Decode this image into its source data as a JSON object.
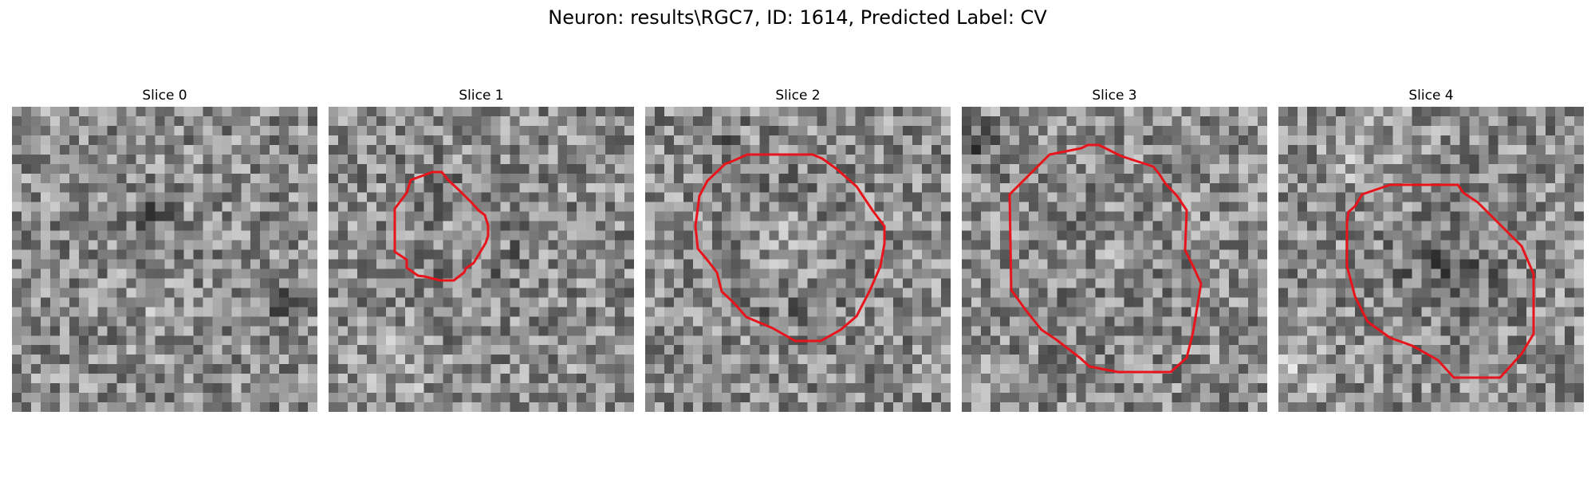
{
  "figure": {
    "title": "Neuron: results\\RGC7, ID: 1614, Predicted Label: CV"
  },
  "panels": [
    {
      "title": "Slice 0",
      "has_contour": false
    },
    {
      "title": "Slice 1",
      "has_contour": true
    },
    {
      "title": "Slice 2",
      "has_contour": true
    },
    {
      "title": "Slice 3",
      "has_contour": true
    },
    {
      "title": "Slice 4",
      "has_contour": true
    }
  ],
  "colors": {
    "contour": "#e8141c",
    "background": "#ffffff"
  }
}
